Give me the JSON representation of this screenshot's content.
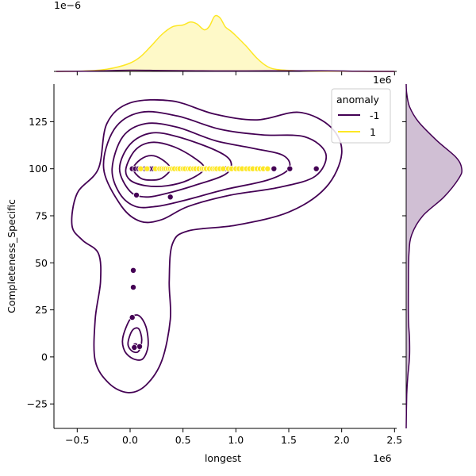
{
  "chart_data": {
    "type": "scatter",
    "title": "",
    "xlabel": "longest",
    "ylabel": "Completeness_Specific",
    "x_offset_label": "1e6",
    "y_marg_offset_label": "1e−6",
    "x_marg_offset_label": "1e6",
    "xlim": [
      -0.72,
      2.52
    ],
    "ylim": [
      -38,
      145
    ],
    "x_ticks": [
      -0.5,
      0.0,
      0.5,
      1.0,
      1.5,
      2.0,
      2.5
    ],
    "x_tick_labels": [
      "−0.5",
      "0.0",
      "0.5",
      "1.0",
      "1.5",
      "2.0",
      "2.5"
    ],
    "y_ticks": [
      -25,
      0,
      25,
      50,
      75,
      100,
      125
    ],
    "y_tick_labels": [
      "−25",
      "0",
      "25",
      "50",
      "75",
      "100",
      "125"
    ],
    "grid": false,
    "legend": {
      "title": "anomaly",
      "placement": "top-right",
      "entries": [
        {
          "label": "-1",
          "color": "#440154"
        },
        {
          "label": "1",
          "color": "#fde725"
        }
      ]
    },
    "series": [
      {
        "name": "-1",
        "color": "#440154",
        "points": [
          [
            0.02,
            100
          ],
          [
            0.05,
            100
          ],
          [
            0.08,
            100
          ],
          [
            0.14,
            100
          ],
          [
            0.18,
            100
          ],
          [
            0.2,
            100
          ],
          [
            0.22,
            100
          ],
          [
            0.25,
            100
          ],
          [
            0.9,
            100
          ],
          [
            1.36,
            100
          ],
          [
            1.51,
            100
          ],
          [
            1.76,
            100
          ],
          [
            0.06,
            86
          ],
          [
            0.38,
            85
          ],
          [
            0.03,
            46
          ],
          [
            0.03,
            37
          ],
          [
            0.02,
            21
          ],
          [
            0.05,
            6
          ],
          [
            0.09,
            5.5
          ],
          [
            0.04,
            5
          ]
        ]
      },
      {
        "name": "1",
        "color": "#fde725",
        "points": [
          [
            0.1,
            100
          ],
          [
            0.16,
            100
          ],
          [
            0.24,
            100
          ],
          [
            0.28,
            100
          ],
          [
            0.3,
            100
          ],
          [
            0.32,
            100
          ],
          [
            0.34,
            100
          ],
          [
            0.36,
            100
          ],
          [
            0.38,
            100
          ],
          [
            0.4,
            100
          ],
          [
            0.42,
            100
          ],
          [
            0.45,
            100
          ],
          [
            0.47,
            100
          ],
          [
            0.5,
            100
          ],
          [
            0.52,
            100
          ],
          [
            0.55,
            100
          ],
          [
            0.57,
            100
          ],
          [
            0.6,
            100
          ],
          [
            0.62,
            100
          ],
          [
            0.65,
            100
          ],
          [
            0.68,
            100
          ],
          [
            0.7,
            100
          ],
          [
            0.72,
            100
          ],
          [
            0.75,
            100
          ],
          [
            0.78,
            100
          ],
          [
            0.8,
            100
          ],
          [
            0.82,
            100
          ],
          [
            0.85,
            100
          ],
          [
            0.88,
            100
          ],
          [
            0.93,
            100
          ],
          [
            0.96,
            100
          ],
          [
            1.0,
            100
          ],
          [
            1.03,
            100
          ],
          [
            1.06,
            100
          ],
          [
            1.1,
            100
          ],
          [
            1.13,
            100
          ],
          [
            1.16,
            100
          ],
          [
            1.2,
            100
          ],
          [
            1.23,
            100
          ],
          [
            1.26,
            100
          ],
          [
            1.3,
            100
          ]
        ]
      }
    ],
    "contours_series_-1": [
      [
        [
          0.03,
          100
        ],
        [
          0.1,
          105
        ],
        [
          0.2,
          107
        ],
        [
          0.3,
          105
        ],
        [
          0.38,
          100
        ],
        [
          0.3,
          95
        ],
        [
          0.2,
          94
        ],
        [
          0.1,
          95
        ]
      ],
      [
        [
          -0.04,
          100
        ],
        [
          0.05,
          110
        ],
        [
          0.2,
          114
        ],
        [
          0.4,
          112
        ],
        [
          0.6,
          106
        ],
        [
          0.7,
          100
        ],
        [
          0.55,
          94
        ],
        [
          0.35,
          91
        ],
        [
          0.15,
          91
        ],
        [
          0.0,
          94
        ]
      ],
      [
        [
          -0.1,
          100
        ],
        [
          0.0,
          113
        ],
        [
          0.2,
          119
        ],
        [
          0.45,
          117
        ],
        [
          0.8,
          110
        ],
        [
          0.95,
          104
        ],
        [
          0.9,
          97
        ],
        [
          0.6,
          91
        ],
        [
          0.35,
          87
        ],
        [
          0.15,
          85
        ],
        [
          0.0,
          88
        ]
      ],
      [
        [
          -0.17,
          100
        ],
        [
          -0.07,
          117
        ],
        [
          0.15,
          124
        ],
        [
          0.45,
          122
        ],
        [
          0.8,
          115
        ],
        [
          1.15,
          111
        ],
        [
          1.45,
          107
        ],
        [
          1.5,
          100
        ],
        [
          1.3,
          94
        ],
        [
          0.9,
          89
        ],
        [
          0.5,
          83
        ],
        [
          0.25,
          80
        ],
        [
          0.05,
          80
        ],
        [
          -0.1,
          87
        ]
      ],
      [
        [
          -0.25,
          100
        ],
        [
          -0.15,
          121
        ],
        [
          0.1,
          130
        ],
        [
          0.45,
          128
        ],
        [
          0.85,
          121
        ],
        [
          1.25,
          118
        ],
        [
          1.65,
          117
        ],
        [
          1.85,
          108
        ],
        [
          1.75,
          96
        ],
        [
          1.4,
          90
        ],
        [
          0.95,
          86
        ],
        [
          0.55,
          80
        ],
        [
          0.3,
          73
        ],
        [
          0.1,
          72
        ],
        [
          -0.08,
          80
        ]
      ],
      [
        [
          -0.3,
          100
        ],
        [
          -0.22,
          124
        ],
        [
          0.0,
          135
        ],
        [
          0.4,
          136
        ],
        [
          0.8,
          129
        ],
        [
          1.2,
          126
        ],
        [
          1.6,
          130
        ],
        [
          1.9,
          122
        ],
        [
          2.0,
          108
        ],
        [
          1.85,
          90
        ],
        [
          1.5,
          77
        ],
        [
          1.0,
          70
        ],
        [
          0.55,
          67
        ],
        [
          0.4,
          60
        ],
        [
          0.37,
          40
        ],
        [
          0.38,
          20
        ],
        [
          0.3,
          -2
        ],
        [
          0.15,
          -15
        ],
        [
          -0.02,
          -19
        ],
        [
          -0.2,
          -14
        ],
        [
          -0.33,
          -2
        ],
        [
          -0.33,
          20
        ],
        [
          -0.28,
          40
        ],
        [
          -0.3,
          55
        ],
        [
          -0.45,
          62
        ],
        [
          -0.55,
          70
        ],
        [
          -0.5,
          87
        ]
      ],
      [
        [
          -0.07,
          10
        ],
        [
          0.0,
          20
        ],
        [
          0.08,
          22
        ],
        [
          0.15,
          16
        ],
        [
          0.17,
          6
        ],
        [
          0.12,
          -1
        ],
        [
          0.03,
          -1
        ],
        [
          -0.05,
          3
        ]
      ],
      [
        [
          -0.02,
          7
        ],
        [
          0.02,
          14
        ],
        [
          0.08,
          15
        ],
        [
          0.11,
          9
        ],
        [
          0.08,
          3
        ],
        [
          0.02,
          3
        ]
      ]
    ],
    "top_marginal_density_series_1": [
      [
        -0.7,
        0
      ],
      [
        -0.5,
        0.003
      ],
      [
        -0.3,
        0.02
      ],
      [
        -0.15,
        0.06
      ],
      [
        0.0,
        0.14
      ],
      [
        0.1,
        0.25
      ],
      [
        0.2,
        0.43
      ],
      [
        0.3,
        0.62
      ],
      [
        0.4,
        0.75
      ],
      [
        0.5,
        0.78
      ],
      [
        0.57,
        0.83
      ],
      [
        0.63,
        0.8
      ],
      [
        0.7,
        0.7
      ],
      [
        0.75,
        0.76
      ],
      [
        0.8,
        0.93
      ],
      [
        0.85,
        0.9
      ],
      [
        0.9,
        0.75
      ],
      [
        0.95,
        0.68
      ],
      [
        1.0,
        0.6
      ],
      [
        1.1,
        0.42
      ],
      [
        1.2,
        0.22
      ],
      [
        1.3,
        0.08
      ],
      [
        1.4,
        0.03
      ],
      [
        1.6,
        0.01
      ],
      [
        2.0,
        0.002
      ],
      [
        2.5,
        0
      ]
    ],
    "top_marginal_density_series_-1": [
      [
        -0.7,
        0
      ],
      [
        -0.4,
        0.005
      ],
      [
        0.0,
        0.02
      ],
      [
        0.3,
        0.015
      ],
      [
        0.8,
        0.008
      ],
      [
        1.3,
        0.01
      ],
      [
        1.8,
        0.01
      ],
      [
        2.2,
        0.003
      ],
      [
        2.5,
        0
      ]
    ],
    "right_marginal_density_series_-1": [
      [
        -38,
        0
      ],
      [
        -20,
        0.01
      ],
      [
        -10,
        0.03
      ],
      [
        0,
        0.06
      ],
      [
        10,
        0.06
      ],
      [
        20,
        0.04
      ],
      [
        40,
        0.04
      ],
      [
        55,
        0.05
      ],
      [
        65,
        0.1
      ],
      [
        75,
        0.3
      ],
      [
        85,
        0.68
      ],
      [
        95,
        0.95
      ],
      [
        100,
        1.0
      ],
      [
        106,
        0.9
      ],
      [
        115,
        0.55
      ],
      [
        125,
        0.22
      ],
      [
        133,
        0.06
      ],
      [
        140,
        0.01
      ],
      [
        145,
        0
      ]
    ]
  }
}
